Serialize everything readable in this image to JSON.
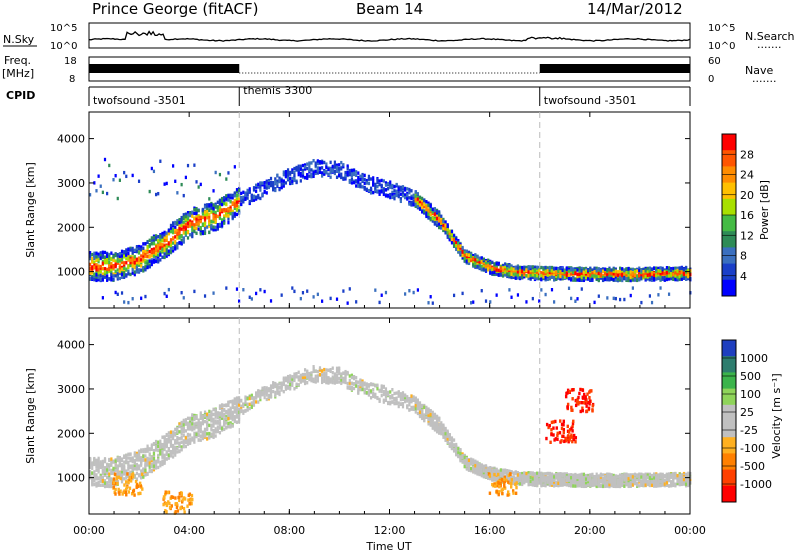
{
  "header": {
    "title": "Prince George (fitACF)",
    "beam": "Beam 14",
    "date": "14/Mar/2012"
  },
  "top_panels": {
    "nsky_label": "N.Sky",
    "nsearch_label": "N.Search",
    "noise_ticks": [
      "10^5",
      "10^0"
    ],
    "freq_label": "Freq.",
    "freq_unit": "[MHz]",
    "freq_ticks": [
      "18",
      "8"
    ],
    "nave_label": "Nave",
    "nave_ticks": [
      "60",
      "0"
    ],
    "cpid_label": "CPID",
    "dotted_legend": "......."
  },
  "chart_data": {
    "type": "heatmap",
    "x_unit": "hours UT",
    "xlim": [
      0,
      24
    ],
    "xlabel": "Time UT",
    "x_tick_labels": [
      "00:00",
      "04:00",
      "08:00",
      "12:00",
      "16:00",
      "20:00",
      "00:00"
    ],
    "x_tick_values": [
      0,
      4,
      8,
      12,
      16,
      20,
      24
    ],
    "cpid_segments": [
      {
        "label": "twofsound -3501",
        "start": 0,
        "end": 6
      },
      {
        "label": "themis 3300",
        "start": 6,
        "end": 18
      },
      {
        "label": "twofsound -3501",
        "start": 18,
        "end": 24
      }
    ],
    "power_panel": {
      "ylabel": "Slant Range [km]",
      "ylim": [
        180,
        4600
      ],
      "y_ticks": [
        1000,
        2000,
        3000,
        4000
      ],
      "colorbar_label": "Power [dB]",
      "colorbar_ticks": [
        "28",
        "24",
        "20",
        "16",
        "12",
        "8",
        "4"
      ],
      "colorbar_colors": [
        "#ff0000",
        "#ff5500",
        "#ff8c00",
        "#ffc000",
        "#a8e000",
        "#44bb44",
        "#2e8b57",
        "#3a6fbf",
        "#1a3fc8",
        "#0000ff"
      ]
    },
    "velocity_panel": {
      "ylabel": "Slant Range [km]",
      "ylim": [
        180,
        4600
      ],
      "y_ticks": [
        1000,
        2000,
        3000,
        4000
      ],
      "colorbar_label": "Velocity [m s⁻¹]",
      "colorbar_ticks": [
        "1000",
        "500",
        "100",
        "25",
        "-25",
        "-100",
        "-500",
        "-1000"
      ],
      "colorbar_colors": [
        "#1f3fbf",
        "#2e7d6e",
        "#3cb44b",
        "#8fd45a",
        "#c0c0c0",
        "#c0c0c0",
        "#ffb020",
        "#ff8000",
        "#ff4000",
        "#ff0000"
      ]
    },
    "echo_band": [
      {
        "t": 0.0,
        "r": 1080
      },
      {
        "t": 1.0,
        "r": 1080
      },
      {
        "t": 2.0,
        "r": 1250
      },
      {
        "t": 3.0,
        "r": 1600
      },
      {
        "t": 4.0,
        "r": 2050
      },
      {
        "t": 5.0,
        "r": 2200
      },
      {
        "t": 6.0,
        "r": 2550
      },
      {
        "t": 7.0,
        "r": 2850
      },
      {
        "t": 8.0,
        "r": 3100
      },
      {
        "t": 9.0,
        "r": 3300
      },
      {
        "t": 10.0,
        "r": 3250
      },
      {
        "t": 11.0,
        "r": 2950
      },
      {
        "t": 12.0,
        "r": 2800
      },
      {
        "t": 13.0,
        "r": 2600
      },
      {
        "t": 14.0,
        "r": 2100
      },
      {
        "t": 15.0,
        "r": 1300
      },
      {
        "t": 16.0,
        "r": 1050
      },
      {
        "t": 17.0,
        "r": 950
      },
      {
        "t": 18.0,
        "r": 920
      },
      {
        "t": 20.0,
        "r": 900
      },
      {
        "t": 22.0,
        "r": 900
      },
      {
        "t": 24.0,
        "r": 920
      }
    ],
    "velocity_patches": [
      {
        "t": 1.5,
        "r": 800,
        "v": -300
      },
      {
        "t": 3.5,
        "r": 400,
        "v": -300
      },
      {
        "t": 16.5,
        "r": 800,
        "v": -400
      },
      {
        "t": 18.8,
        "r": 2000,
        "v": -800
      },
      {
        "t": 19.6,
        "r": 2700,
        "v": -800
      }
    ]
  }
}
